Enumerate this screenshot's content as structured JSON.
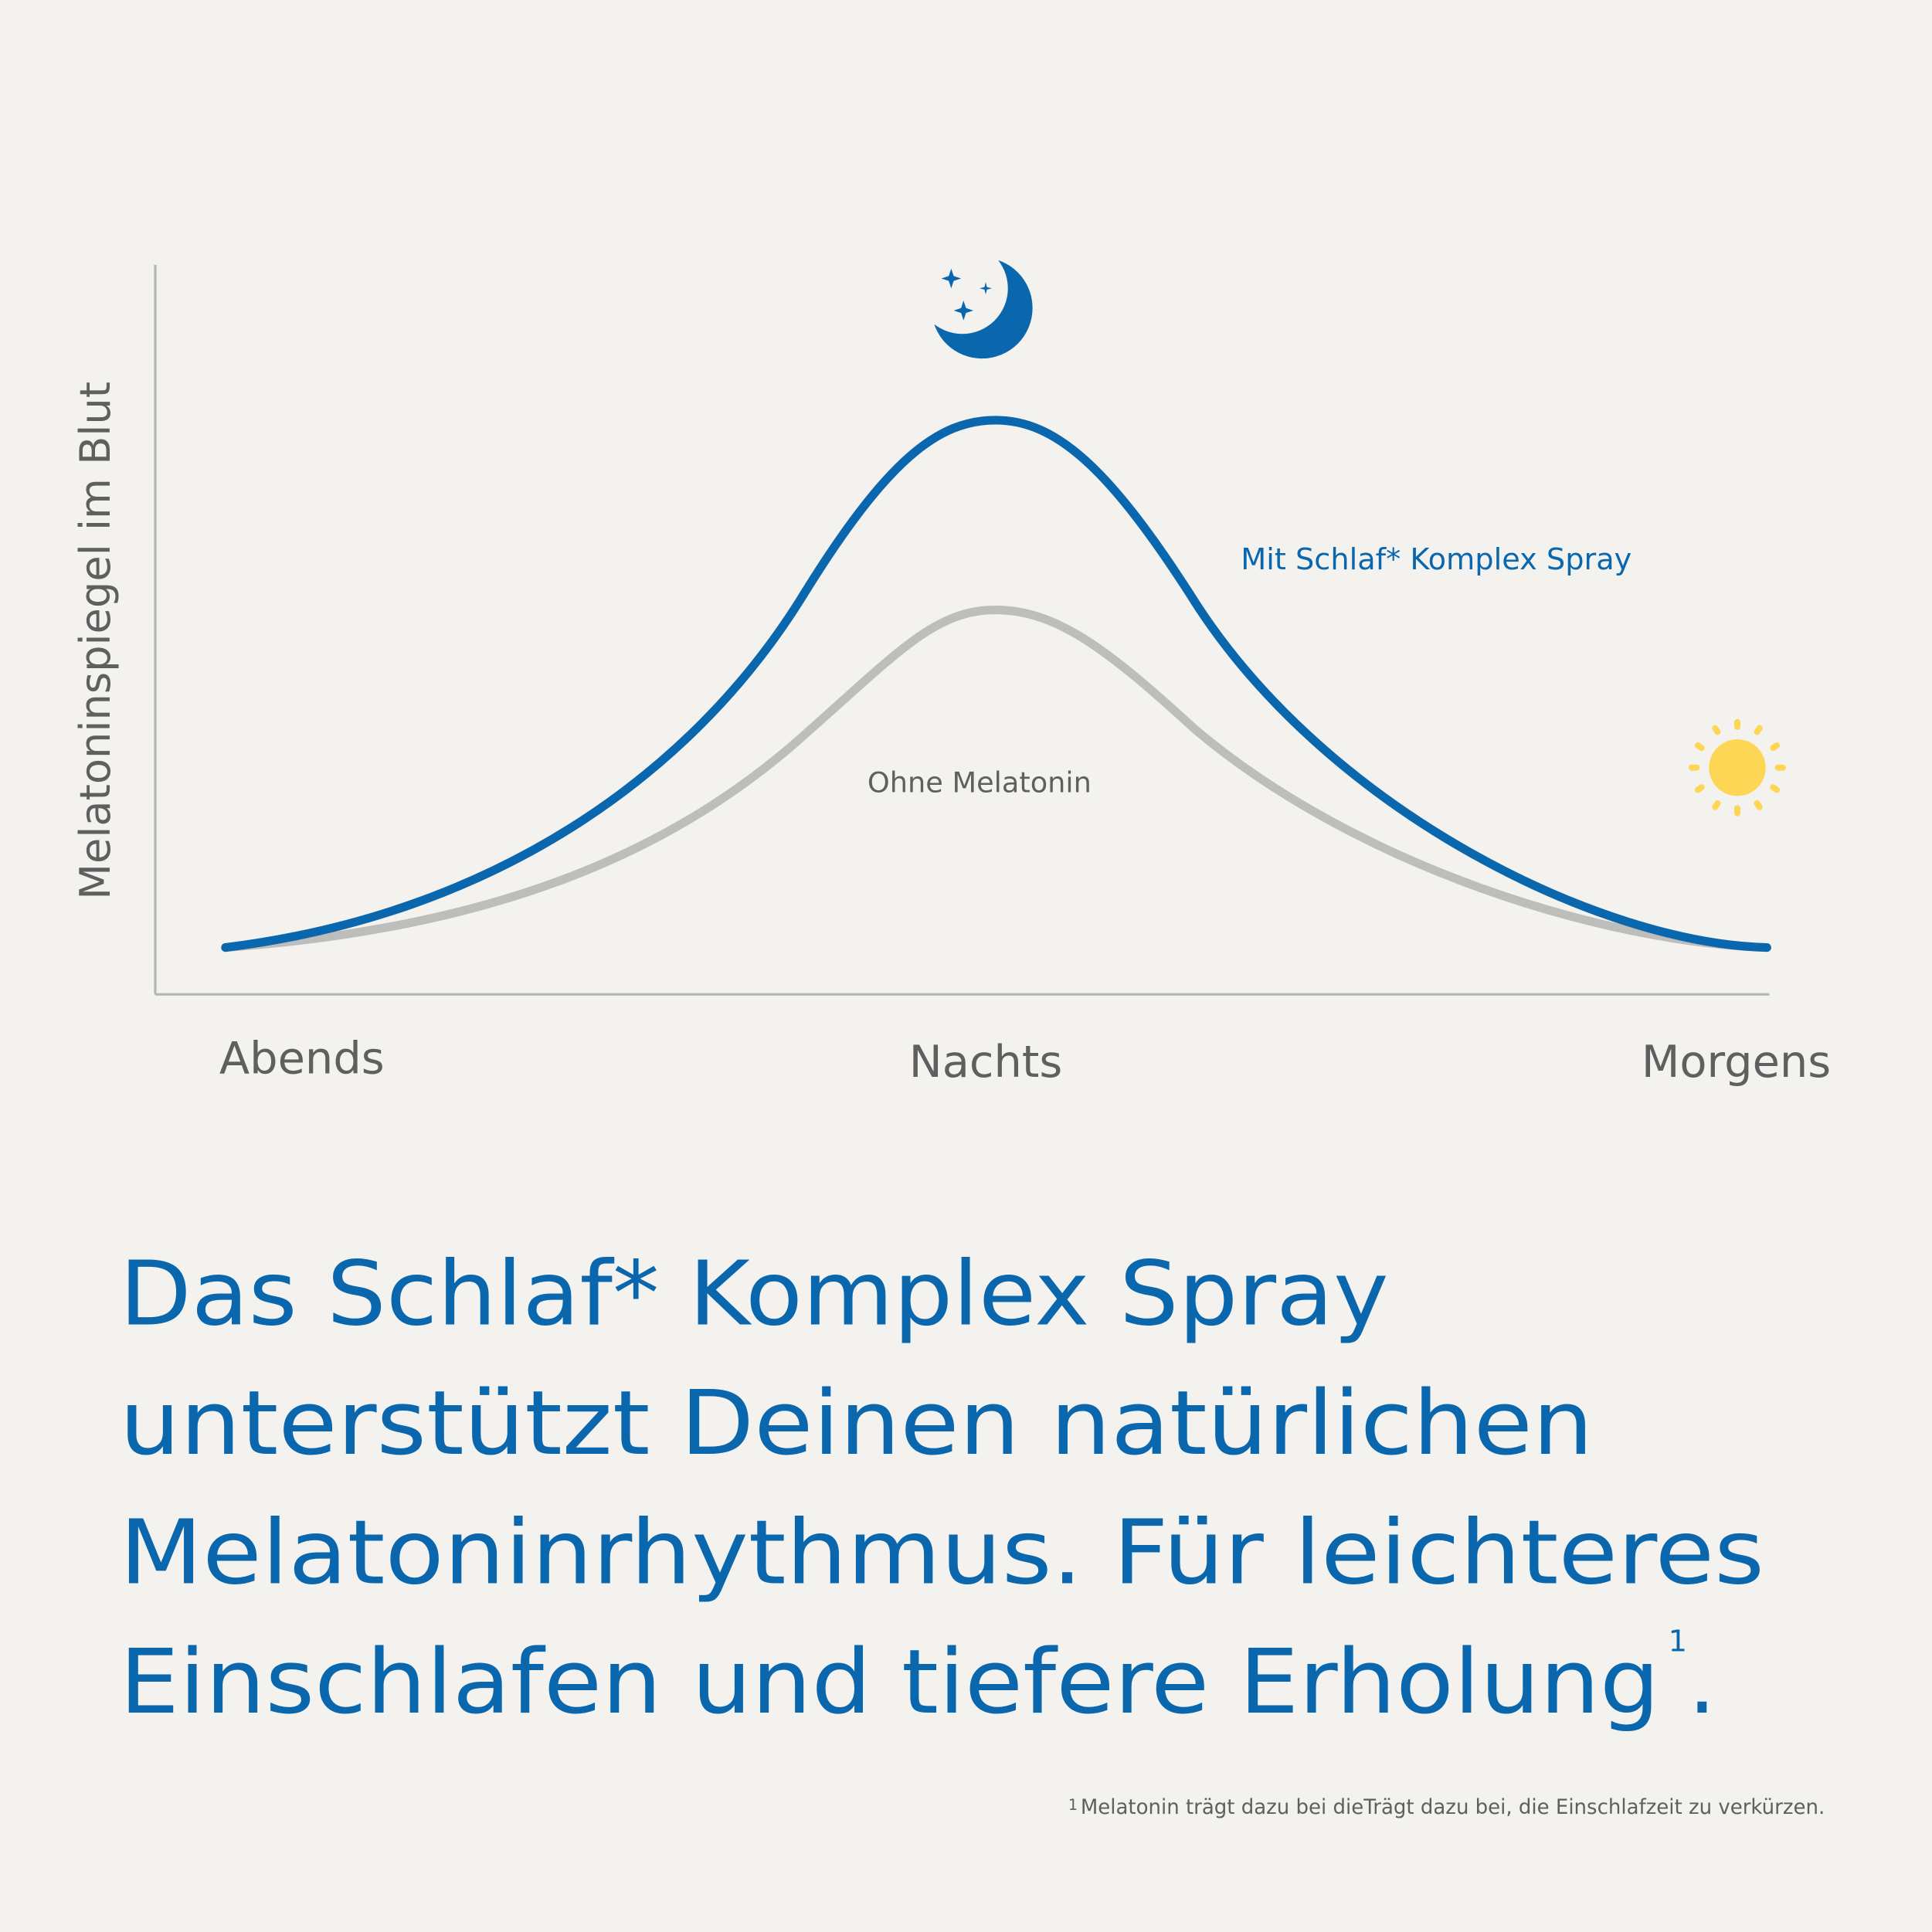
{
  "chart": {
    "y_axis_label": "Melatoninspiegel im Blut",
    "x_labels": [
      "Abends",
      "Nachts",
      "Morgens"
    ],
    "series_labels": [
      "Mit Schlaf* Komplex Spray",
      "Ohne Melatonin"
    ]
  },
  "headline": {
    "lines": [
      "Das Schlaf* Komplex Spray",
      "unterstützt Deinen natürlichen",
      "Melatoninrhythmus. Für leichteres",
      "Einschlafen und tiefere Erholung"
    ],
    "superscript": "1",
    "end": "."
  },
  "footnote": {
    "marker": "1",
    "text": "Melatonin trägt dazu bei dieTrägt dazu bei, die Einschlafzeit zu verkürzen."
  }
}
